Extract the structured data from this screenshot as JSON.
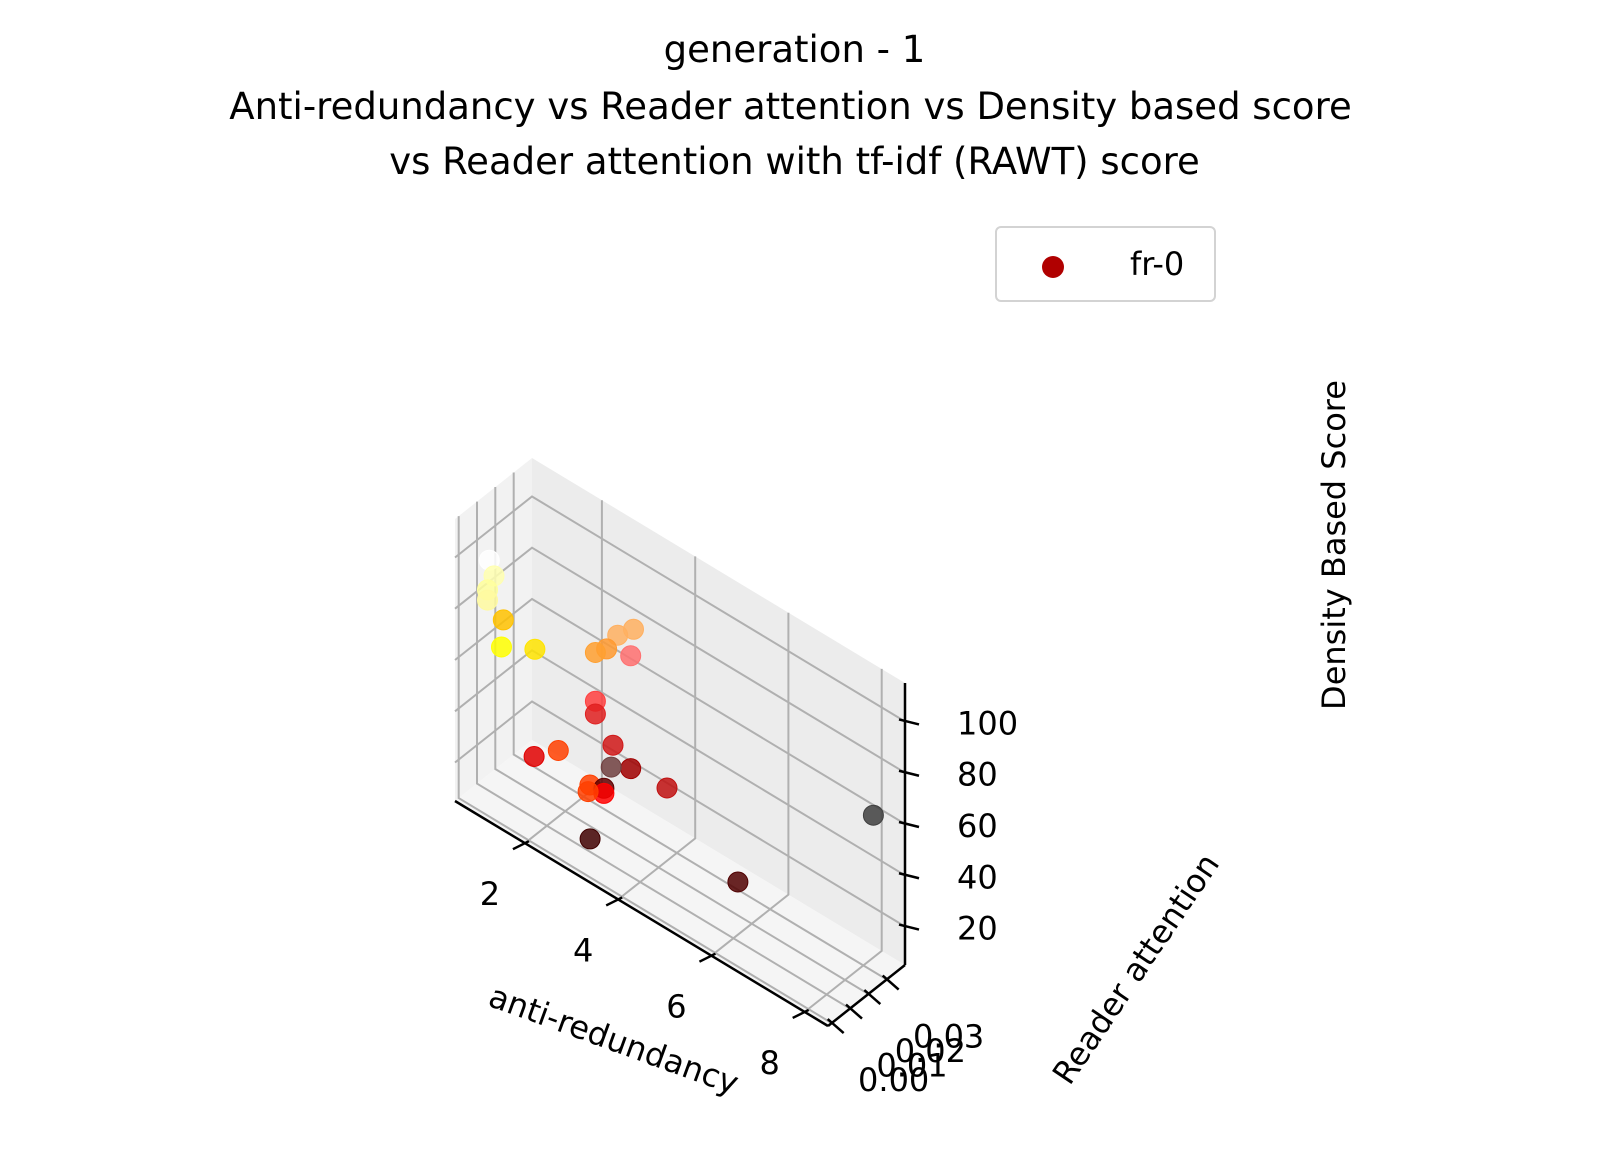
{
  "chart_data": {
    "type": "scatter3d",
    "title": "generation - 1",
    "subtitle_lines": [
      "Anti-redundancy vs Reader attention vs  Density based score",
      "vs Reader attention with tf-idf (RAWT) score"
    ],
    "xlabel": "anti-redundancy",
    "ylabel": "Reader attention",
    "zlabel": "Density Based Score",
    "xticks": [
      "2",
      "4",
      "6",
      "8"
    ],
    "yticks": [
      "0.00",
      "0.01",
      "0.02",
      "0.03"
    ],
    "zticks": [
      "20",
      "40",
      "60",
      "80",
      "100"
    ],
    "xlim": [
      0.5,
      8.5
    ],
    "ylim": [
      -0.002,
      0.04
    ],
    "zlim": [
      5,
      115
    ],
    "grid": true,
    "legend": {
      "position": "top-right",
      "entries": [
        "fr-0"
      ],
      "marker_color": "#b00000"
    },
    "colormap": "hot",
    "series": [
      {
        "name": "fr-0",
        "points": [
          {
            "x": 1.0,
            "y": 0.004,
            "z": 101,
            "color": "#ffffff"
          },
          {
            "x": 1.1,
            "y": 0.004,
            "z": 96,
            "color": "#ffffb0"
          },
          {
            "x": 1.0,
            "y": 0.003,
            "z": 90,
            "color": "#ffff9c"
          },
          {
            "x": 1.0,
            "y": 0.003,
            "z": 86,
            "color": "#fffaa0"
          },
          {
            "x": 1.3,
            "y": 0.004,
            "z": 81,
            "color": "#ffc200"
          },
          {
            "x": 1.9,
            "y": 0.006,
            "z": 75,
            "color": "#ffe400"
          },
          {
            "x": 1.3,
            "y": 0.003,
            "z": 71,
            "color": "#ffff00"
          },
          {
            "x": 3.7,
            "y": 0.014,
            "z": 98,
            "color": "#ffb060"
          },
          {
            "x": 3.4,
            "y": 0.013,
            "z": 93,
            "color": "#ffb060"
          },
          {
            "x": 3.2,
            "y": 0.012,
            "z": 86,
            "color": "#ff9a30"
          },
          {
            "x": 3.0,
            "y": 0.011,
            "z": 83,
            "color": "#ffa030"
          },
          {
            "x": 3.6,
            "y": 0.015,
            "z": 86,
            "color": "#ff7070"
          },
          {
            "x": 3.0,
            "y": 0.011,
            "z": 64,
            "color": "#ff4040"
          },
          {
            "x": 3.0,
            "y": 0.011,
            "z": 59,
            "color": "#e02020"
          },
          {
            "x": 3.3,
            "y": 0.013,
            "z": 49,
            "color": "#d01818"
          },
          {
            "x": 3.6,
            "y": 0.015,
            "z": 42,
            "color": "#a00000"
          },
          {
            "x": 4.3,
            "y": 0.017,
            "z": 41,
            "color": "#c01010"
          },
          {
            "x": 3.3,
            "y": 0.012,
            "z": 41,
            "color": "#704040"
          },
          {
            "x": 2.4,
            "y": 0.006,
            "z": 41,
            "color": "#ff4000"
          },
          {
            "x": 2.0,
            "y": 0.003,
            "z": 36,
            "color": "#e00000"
          },
          {
            "x": 3.0,
            "y": 0.008,
            "z": 33,
            "color": "#ff4000"
          },
          {
            "x": 3.3,
            "y": 0.008,
            "z": 35,
            "color": "#600000"
          },
          {
            "x": 3.3,
            "y": 0.008,
            "z": 33,
            "color": "#ff0000"
          },
          {
            "x": 3.0,
            "y": 0.007,
            "z": 31,
            "color": "#ff4000"
          },
          {
            "x": 3.2,
            "y": 0.003,
            "z": 17,
            "color": "#400000"
          },
          {
            "x": 5.9,
            "y": 0.015,
            "z": 23,
            "color": "#500000"
          },
          {
            "x": 7.9,
            "y": 0.038,
            "z": 58,
            "color": "#404040"
          }
        ]
      }
    ]
  }
}
